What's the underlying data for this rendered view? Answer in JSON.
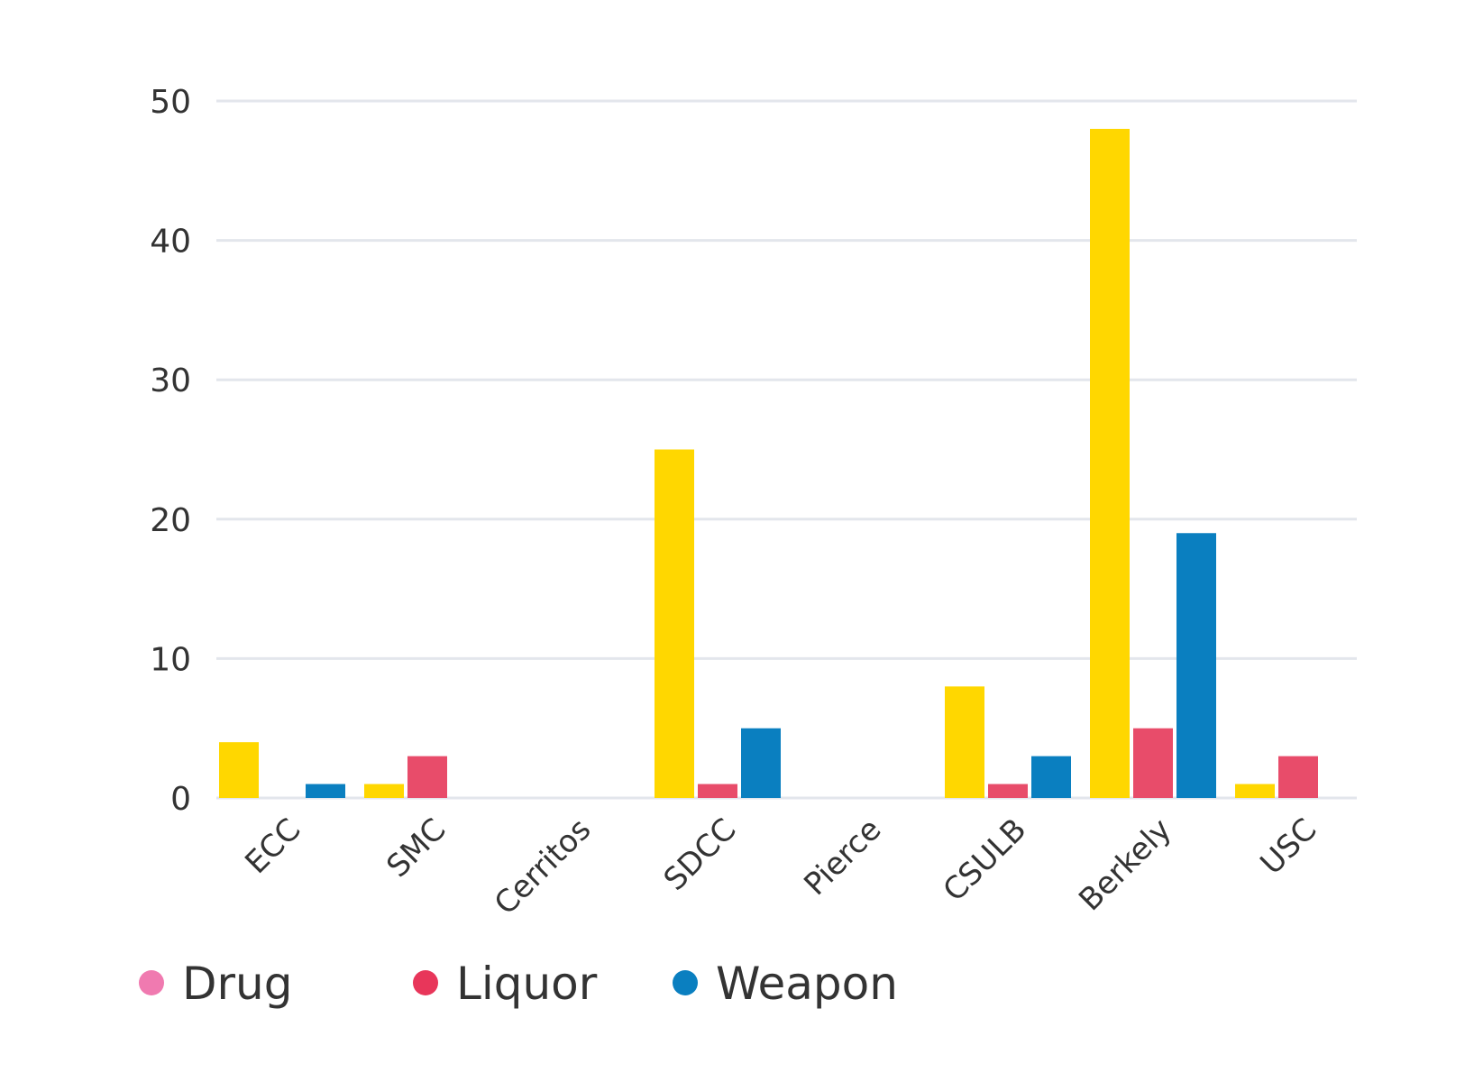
{
  "chart_data": {
    "type": "bar",
    "title": "",
    "xlabel": "",
    "ylabel": "",
    "categories": [
      "ECC",
      "SMC",
      "Cerritos",
      "SDCC",
      "Pierce",
      "CSULB",
      "Berkely",
      "USC"
    ],
    "series": [
      {
        "name": "Drug",
        "bar_color": "#ffd700",
        "legend_color": "#f07ab0",
        "values": [
          4,
          1,
          0,
          25,
          0,
          8,
          48,
          1
        ]
      },
      {
        "name": "Liquor",
        "bar_color": "#e84c6a",
        "legend_color": "#e8365a",
        "values": [
          0,
          3,
          0,
          1,
          0,
          1,
          5,
          3
        ]
      },
      {
        "name": "Weapon",
        "bar_color": "#0a7fc0",
        "legend_color": "#0a7fc0",
        "values": [
          1,
          0,
          0,
          5,
          0,
          3,
          19,
          0
        ]
      }
    ],
    "ylim": [
      0,
      50
    ],
    "yticks": [
      0,
      10,
      20,
      30,
      40,
      50
    ],
    "grid": true,
    "legend_position": "bottom-left"
  }
}
